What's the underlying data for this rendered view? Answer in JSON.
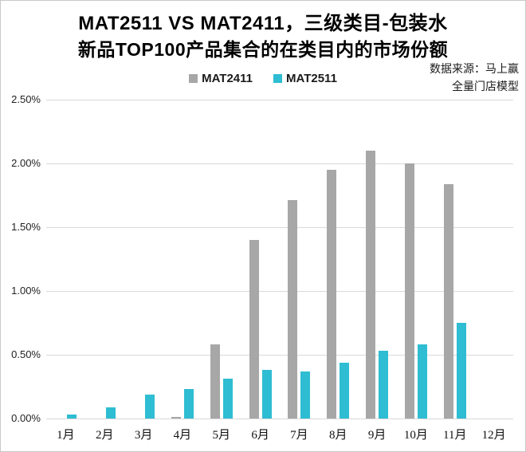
{
  "title": {
    "line1": "MAT2511 VS MAT2411，三级类目-包装水",
    "line2": "新品TOP100产品集合的在类目内的市场份额"
  },
  "source": {
    "line1": "数据来源：马上赢",
    "line2": "全量门店模型"
  },
  "legend": [
    {
      "label": "MAT2411",
      "color": "#a7a7a7"
    },
    {
      "label": "MAT2511",
      "color": "#2ebdd2"
    }
  ],
  "chart_data": {
    "type": "bar",
    "categories": [
      "1月",
      "2月",
      "3月",
      "4月",
      "5月",
      "6月",
      "7月",
      "8月",
      "9月",
      "10月",
      "11月",
      "12月"
    ],
    "series": [
      {
        "name": "MAT2411",
        "color": "#a7a7a7",
        "values": [
          0,
          0,
          0,
          0.01,
          0.58,
          1.4,
          1.71,
          1.95,
          2.1,
          2.0,
          1.84,
          0
        ]
      },
      {
        "name": "MAT2511",
        "color": "#2ebdd2",
        "values": [
          0.03,
          0.09,
          0.19,
          0.23,
          0.31,
          0.38,
          0.37,
          0.44,
          0.53,
          0.58,
          0.75,
          0
        ]
      }
    ],
    "title": "MAT2511 VS MAT2411，三级类目-包装水 新品TOP100产品集合的在类目内的市场份额",
    "xlabel": "",
    "ylabel": "",
    "ylim": [
      0,
      2.5
    ],
    "ytick_step": 0.5,
    "yticks": [
      "0.00%",
      "0.50%",
      "1.00%",
      "1.50%",
      "2.00%",
      "2.50%"
    ],
    "unit": "%",
    "grid": true,
    "legend_position": "top"
  }
}
